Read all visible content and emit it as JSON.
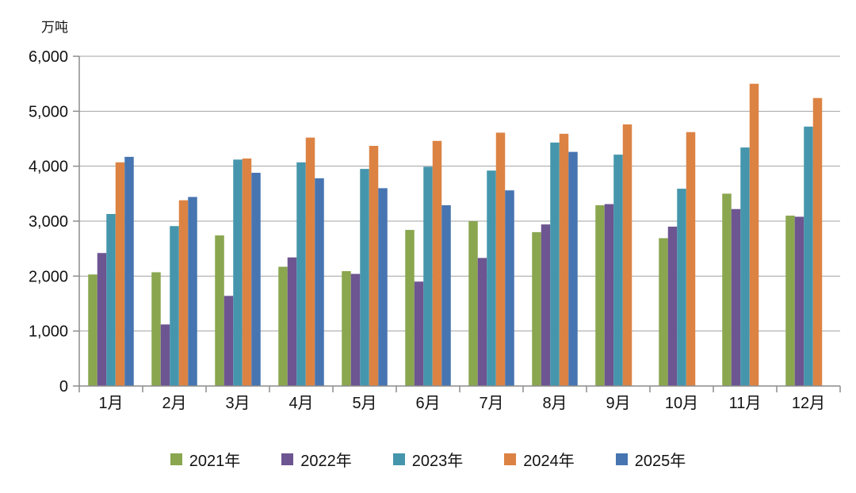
{
  "chart_data": {
    "type": "bar",
    "title": "",
    "unit_label": "万吨",
    "categories": [
      "1月",
      "2月",
      "3月",
      "4月",
      "5月",
      "6月",
      "7月",
      "8月",
      "9月",
      "10月",
      "11月",
      "12月"
    ],
    "series": [
      {
        "name": "2021年",
        "color": "#8AA64F",
        "values": [
          2030,
          2070,
          2740,
          2170,
          2090,
          2840,
          3000,
          2800,
          3290,
          2690,
          3500,
          3100
        ]
      },
      {
        "name": "2022年",
        "color": "#6D5591",
        "values": [
          2420,
          1120,
          1640,
          2340,
          2040,
          1900,
          2330,
          2940,
          3310,
          2900,
          3220,
          3080
        ]
      },
      {
        "name": "2023年",
        "color": "#4596AC",
        "values": [
          3130,
          2910,
          4120,
          4070,
          3950,
          3990,
          3920,
          4430,
          4210,
          3590,
          4340,
          4720
        ]
      },
      {
        "name": "2024年",
        "color": "#DC8344",
        "values": [
          4070,
          3380,
          4140,
          4520,
          4370,
          4460,
          4610,
          4590,
          4760,
          4620,
          5500,
          5240
        ]
      },
      {
        "name": "2025年",
        "color": "#4775B1",
        "values": [
          4170,
          3440,
          3880,
          3780,
          3600,
          3290,
          3560,
          4260,
          null,
          null,
          null,
          null
        ]
      }
    ],
    "ylim": [
      0,
      6000
    ],
    "ytick_step": 1000,
    "ytick_labels": [
      "0",
      "1,000",
      "2,000",
      "3,000",
      "4,000",
      "5,000",
      "6,000"
    ],
    "grid": true,
    "legend_position": "bottom"
  }
}
